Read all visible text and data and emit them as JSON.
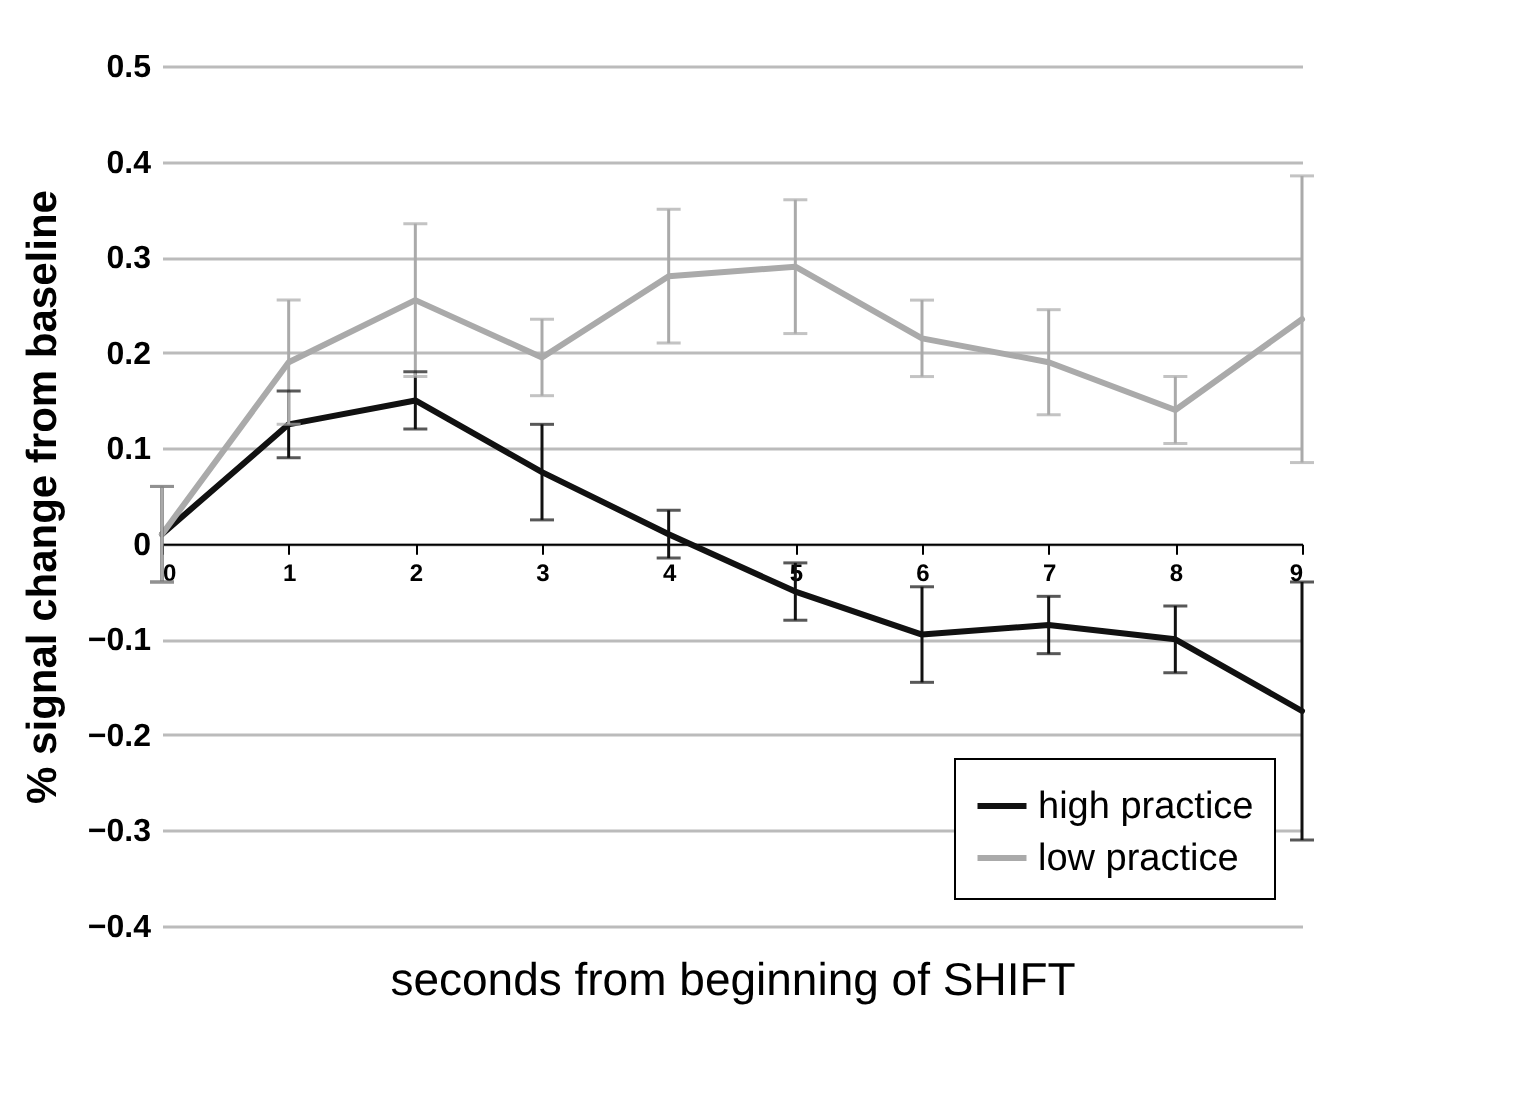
{
  "chart_data": {
    "type": "line",
    "xlabel": "seconds from beginning of SHIFT",
    "ylabel": "% signal change from baseline",
    "x": [
      0,
      1,
      2,
      3,
      4,
      5,
      6,
      7,
      8,
      9
    ],
    "series": [
      {
        "name": "high practice",
        "color": "#111111",
        "values": [
          0.01,
          0.125,
          0.15,
          0.075,
          0.01,
          -0.05,
          -0.095,
          -0.085,
          -0.1,
          -0.175
        ],
        "errors": [
          0.05,
          0.035,
          0.03,
          0.05,
          0.025,
          0.03,
          0.05,
          0.03,
          0.035,
          0.135
        ]
      },
      {
        "name": "low practice",
        "color": "#aaaaaa",
        "values": [
          0.01,
          0.19,
          0.255,
          0.195,
          0.28,
          0.29,
          0.215,
          0.19,
          0.14,
          0.235
        ],
        "errors": [
          0.05,
          0.065,
          0.08,
          0.04,
          0.07,
          0.07,
          0.04,
          0.055,
          0.035,
          0.15
        ]
      }
    ],
    "xlim": [
      0,
      9
    ],
    "xticks": [
      0,
      1,
      2,
      3,
      4,
      5,
      6,
      7,
      8,
      9
    ],
    "ylim": [
      -0.4,
      0.5
    ],
    "yticks": [
      -0.4,
      -0.3,
      -0.2,
      -0.1,
      0,
      0.1,
      0.2,
      0.3,
      0.4,
      0.5
    ],
    "grid": "y",
    "legend": "bottom right",
    "marker": "none",
    "line_style": "solid"
  }
}
